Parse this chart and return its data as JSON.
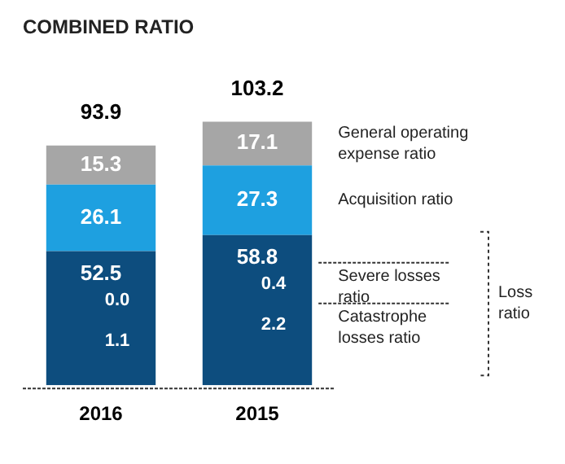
{
  "chart_data": {
    "type": "bar",
    "title": "COMBINED RATIO",
    "categories": [
      "2016",
      "2015"
    ],
    "stacked": true,
    "data_labels": true,
    "legend": false,
    "series": [
      {
        "name": "Loss ratio",
        "color": "#0d4d7e",
        "values": [
          52.5,
          58.8
        ]
      },
      {
        "name": "Acquisition ratio",
        "color": "#1ea0e0",
        "values": [
          26.1,
          27.3
        ]
      },
      {
        "name": "General operating expense ratio",
        "color": "#a6a6a6",
        "values": [
          15.3,
          17.1
        ]
      }
    ],
    "totals": [
      "93.9",
      "103.2"
    ],
    "annotations": [
      "Severe losses ratio",
      "Catastrophe losses ratio",
      "0.0",
      "1.1",
      "0.4",
      "2.2"
    ]
  }
}
